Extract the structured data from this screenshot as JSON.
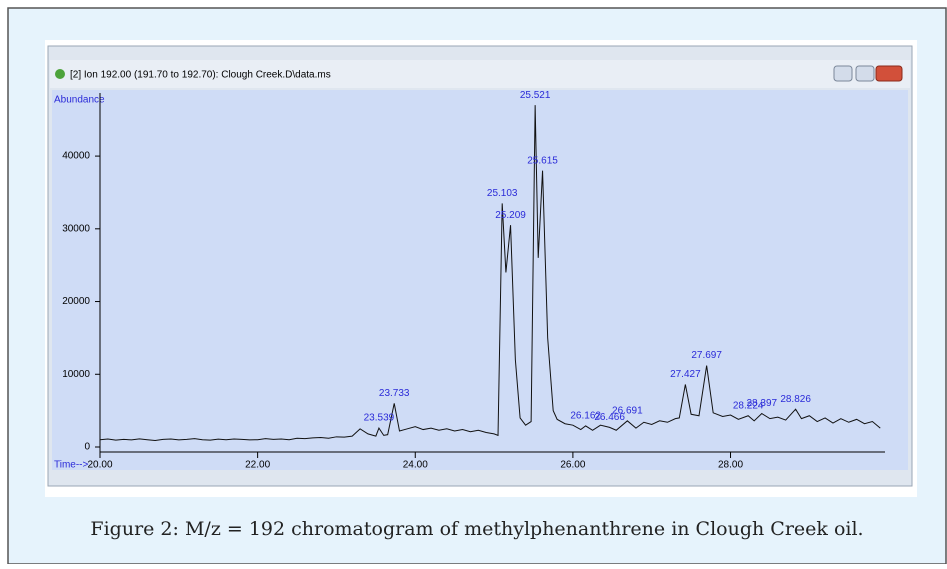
{
  "chart_data": {
    "type": "line",
    "window_title": "[2] Ion 192.00 (191.70 to 192.70): Clough Creek.D\\data.ms",
    "y_label": "Abundance",
    "x_label": "Time-->",
    "caption": "Figure 2: M/z = 192 chromatogram of methylphenanthrene in Clough Creek oil.",
    "xlim": [
      20,
      29.96
    ],
    "ylim": [
      0,
      48400
    ],
    "xticks": [
      {
        "value": 20,
        "label": "20.00"
      },
      {
        "value": 22,
        "label": "22.00"
      },
      {
        "value": 24,
        "label": "24.00"
      },
      {
        "value": 26,
        "label": "26.00"
      },
      {
        "value": 28,
        "label": "28.00"
      }
    ],
    "yticks": [
      0,
      10000,
      20000,
      30000,
      40000
    ],
    "x": [
      20.0,
      20.1,
      20.2,
      20.3,
      20.4,
      20.5,
      20.6,
      20.7,
      20.8,
      20.9,
      21.0,
      21.1,
      21.2,
      21.3,
      21.4,
      21.5,
      21.6,
      21.7,
      21.8,
      21.9,
      22.0,
      22.1,
      22.2,
      22.3,
      22.4,
      22.5,
      22.6,
      22.7,
      22.8,
      22.9,
      23.0,
      23.1,
      23.2,
      23.3,
      23.4,
      23.5,
      23.539,
      23.6,
      23.65,
      23.733,
      23.8,
      23.9,
      24.0,
      24.1,
      24.2,
      24.3,
      24.4,
      24.5,
      24.6,
      24.7,
      24.8,
      24.9,
      25.0,
      25.05,
      25.103,
      25.15,
      25.209,
      25.27,
      25.33,
      25.4,
      25.47,
      25.521,
      25.56,
      25.615,
      25.68,
      25.75,
      25.8,
      25.9,
      26.0,
      26.1,
      26.162,
      26.25,
      26.35,
      26.466,
      26.55,
      26.691,
      26.8,
      26.9,
      27.0,
      27.1,
      27.2,
      27.3,
      27.35,
      27.427,
      27.5,
      27.6,
      27.697,
      27.78,
      27.9,
      28.0,
      28.1,
      28.224,
      28.3,
      28.397,
      28.5,
      28.6,
      28.7,
      28.826,
      28.9,
      29.0,
      29.1,
      29.2,
      29.3,
      29.4,
      29.5,
      29.6,
      29.7,
      29.8,
      29.9
    ],
    "series": [
      {
        "name": "Ion 192.00",
        "color": "#111111",
        "values": [
          1000,
          1100,
          950,
          1050,
          980,
          1120,
          1000,
          900,
          1050,
          1100,
          980,
          1050,
          1150,
          1000,
          950,
          1080,
          1000,
          1100,
          1050,
          980,
          1000,
          1150,
          1050,
          1100,
          1000,
          1200,
          1150,
          1250,
          1300,
          1200,
          1400,
          1350,
          1500,
          2500,
          1800,
          1500,
          2600,
          1600,
          1700,
          6000,
          2200,
          2500,
          2800,
          2400,
          2600,
          2300,
          2500,
          2200,
          2400,
          2100,
          2300,
          2000,
          1800,
          1600,
          33500,
          24000,
          30500,
          12000,
          4000,
          3000,
          3500,
          47000,
          26000,
          38000,
          15000,
          5000,
          3800,
          3200,
          3000,
          2400,
          2900,
          2300,
          3000,
          2700,
          2300,
          3600,
          2600,
          3400,
          3100,
          3600,
          3400,
          3900,
          4000,
          8600,
          4500,
          4300,
          11200,
          4700,
          4200,
          4400,
          3800,
          4300,
          3600,
          4600,
          3900,
          4100,
          3700,
          5200,
          3900,
          4300,
          3500,
          4000,
          3300,
          3900,
          3400,
          3800,
          3200,
          3500,
          2600
        ]
      }
    ],
    "peaks": [
      {
        "time": 23.539,
        "abundance": 2600
      },
      {
        "time": 23.733,
        "abundance": 6000
      },
      {
        "time": 25.103,
        "abundance": 33500
      },
      {
        "time": 25.209,
        "abundance": 30500
      },
      {
        "time": 25.521,
        "abundance": 47000
      },
      {
        "time": 25.615,
        "abundance": 38000
      },
      {
        "time": 26.162,
        "abundance": 2900
      },
      {
        "time": 26.466,
        "abundance": 2700
      },
      {
        "time": 26.691,
        "abundance": 3600
      },
      {
        "time": 27.427,
        "abundance": 8600
      },
      {
        "time": 27.697,
        "abundance": 11200
      },
      {
        "time": 28.224,
        "abundance": 4300
      },
      {
        "time": 28.397,
        "abundance": 4600
      },
      {
        "time": 28.826,
        "abundance": 5200
      }
    ]
  }
}
